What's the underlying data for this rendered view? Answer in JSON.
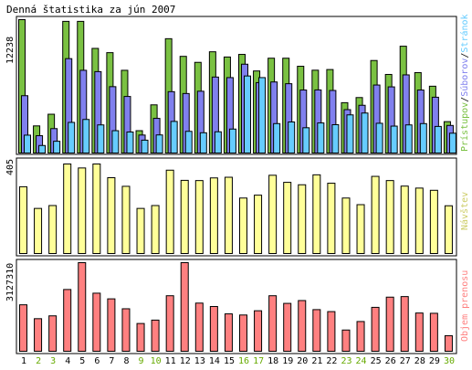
{
  "title": "Denná štatistika za jún 2007",
  "colors": {
    "hits": "#7ac142",
    "files": "#8080ee",
    "pages": "#66ccff",
    "visits": "#ffff99",
    "kbytes": "#ff8080",
    "weekday_label": "#000000",
    "weekend_label": "#66aa00",
    "legend_slash": "#000000"
  },
  "panels": {
    "top": {
      "max_label": "12238",
      "legend": [
        {
          "text": "Prístupov",
          "color": "#7ac142"
        },
        {
          "text": "/",
          "color": "#000000"
        },
        {
          "text": "Súborov",
          "color": "#8080ee"
        },
        {
          "text": "/",
          "color": "#000000"
        },
        {
          "text": "Stránok",
          "color": "#66ccff"
        }
      ]
    },
    "middle": {
      "max_label": "405",
      "legend": [
        {
          "text": "Návštev",
          "color": "#cccc66"
        }
      ]
    },
    "bottom": {
      "max_label": "3127310",
      "legend": [
        {
          "text": "Objem prenosu",
          "color": "#ff8080"
        }
      ]
    }
  },
  "chart_data": {
    "type": "bar",
    "categories": [
      "1",
      "2",
      "3",
      "4",
      "5",
      "6",
      "7",
      "8",
      "9",
      "10",
      "11",
      "12",
      "13",
      "14",
      "15",
      "16",
      "17",
      "18",
      "19",
      "20",
      "21",
      "22",
      "23",
      "24",
      "25",
      "26",
      "27",
      "28",
      "29",
      "30"
    ],
    "weekend_days": [
      "2",
      "3",
      "9",
      "10",
      "16",
      "17",
      "23",
      "24",
      "30"
    ],
    "series": [
      {
        "name": "Prístupov",
        "values": [
          12238,
          2490,
          3560,
          12080,
          12080,
          9600,
          9210,
          7590,
          2050,
          4420,
          10490,
          8870,
          8320,
          9290,
          8810,
          9050,
          7530,
          8700,
          8700,
          7960,
          7600,
          7660,
          4620,
          5090,
          8490,
          7210,
          9800,
          7380,
          6130,
          2880
        ]
      },
      {
        "name": "Súborov",
        "values": [
          5260,
          1590,
          2240,
          8660,
          7590,
          7470,
          6090,
          5190,
          1650,
          3180,
          5630,
          5460,
          5670,
          6970,
          6920,
          8150,
          6460,
          6520,
          6360,
          5780,
          5790,
          5740,
          3980,
          4380,
          6240,
          6070,
          7170,
          5780,
          5120,
          2530
        ]
      },
      {
        "name": "Stránok",
        "values": [
          1640,
          690,
          1080,
          2810,
          3080,
          2580,
          2050,
          1930,
          1180,
          1660,
          2900,
          1990,
          1860,
          1950,
          2200,
          7070,
          6920,
          2700,
          2850,
          2320,
          2760,
          2600,
          3500,
          3670,
          2730,
          2470,
          2580,
          2700,
          2440,
          1820
        ]
      },
      {
        "name": "Návštev",
        "values": [
          302,
          204,
          217,
          405,
          387,
          405,
          343,
          304,
          204,
          217,
          377,
          331,
          330,
          342,
          345,
          251,
          264,
          354,
          322,
          311,
          356,
          318,
          251,
          221,
          349,
          330,
          305,
          296,
          286,
          216
        ]
      },
      {
        "name": "Objem prenosu",
        "values": [
          1640000,
          1150000,
          1250000,
          2180000,
          3127310,
          2050000,
          1850000,
          1500000,
          980000,
          1100000,
          1960000,
          3127310,
          1700000,
          1580000,
          1320000,
          1280000,
          1430000,
          1960000,
          1690000,
          1790000,
          1470000,
          1400000,
          750000,
          1050000,
          1550000,
          1910000,
          1930000,
          1350000,
          1340000,
          550000
        ]
      }
    ],
    "ylim": {
      "hits": [
        0,
        12238
      ],
      "visits": [
        0,
        405
      ],
      "kbytes": [
        0,
        3127310
      ]
    },
    "grid": false,
    "legend_placement": "right-vertical"
  }
}
